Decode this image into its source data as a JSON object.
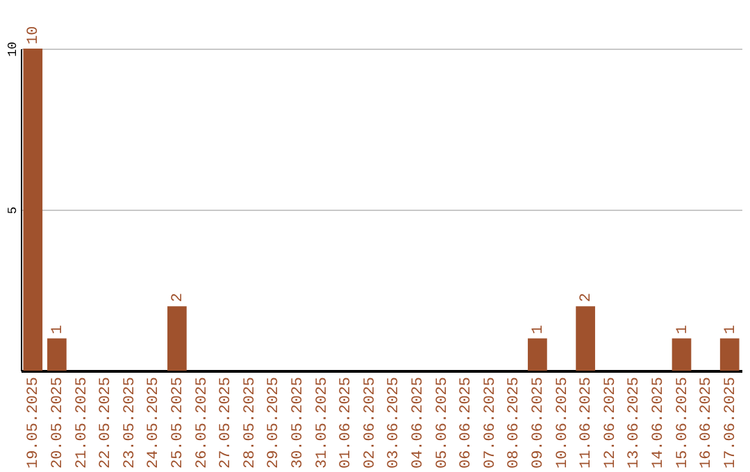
{
  "chart_data": {
    "type": "bar",
    "categories": [
      "19.05.2025",
      "20.05.2025",
      "21.05.2025",
      "22.05.2025",
      "23.05.2025",
      "24.05.2025",
      "25.05.2025",
      "26.05.2025",
      "27.05.2025",
      "28.05.2025",
      "29.05.2025",
      "30.05.2025",
      "31.05.2025",
      "01.06.2025",
      "02.06.2025",
      "03.06.2025",
      "04.06.2025",
      "05.06.2025",
      "06.06.2025",
      "07.06.2025",
      "08.06.2025",
      "09.06.2025",
      "10.06.2025",
      "11.06.2025",
      "12.06.2025",
      "13.06.2025",
      "14.06.2025",
      "15.06.2025",
      "16.06.2025",
      "17.06.2025"
    ],
    "values": [
      10,
      1,
      0,
      0,
      0,
      0,
      2,
      0,
      0,
      0,
      0,
      0,
      0,
      0,
      0,
      0,
      0,
      0,
      0,
      0,
      0,
      1,
      0,
      2,
      0,
      0,
      0,
      1,
      0,
      1
    ],
    "value_labels": [
      "10",
      "1",
      null,
      null,
      null,
      null,
      "2",
      null,
      null,
      null,
      null,
      null,
      null,
      null,
      null,
      null,
      null,
      null,
      null,
      null,
      null,
      "1",
      null,
      "2",
      null,
      null,
      null,
      "1",
      null,
      "1"
    ],
    "color": "#a0522d",
    "ylim": [
      0,
      10
    ],
    "yticks": [
      5,
      10
    ],
    "grid": "y"
  }
}
